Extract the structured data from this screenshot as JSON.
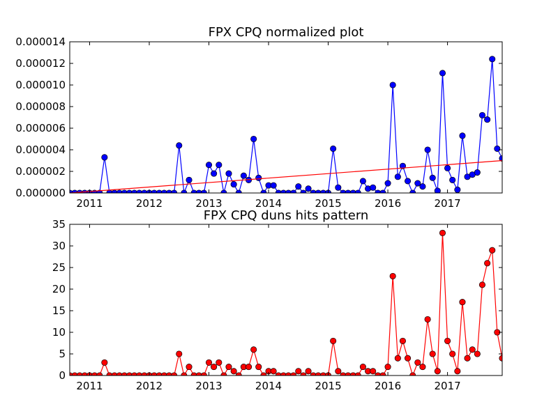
{
  "chart_data": [
    {
      "type": "line",
      "title": "FPX CPQ normalized plot",
      "xlabel": "",
      "ylabel": "",
      "xlim": [
        2010.667,
        2017.917
      ],
      "ylim": [
        0,
        1.4e-05
      ],
      "x_ticks": [
        {
          "value": 2011,
          "label": "2011"
        },
        {
          "value": 2012,
          "label": "2012"
        },
        {
          "value": 2013,
          "label": "2013"
        },
        {
          "value": 2014,
          "label": "2014"
        },
        {
          "value": 2015,
          "label": "2015"
        },
        {
          "value": 2016,
          "label": "2016"
        },
        {
          "value": 2017,
          "label": "2017"
        }
      ],
      "y_ticks": [
        {
          "value": 0,
          "label": "0.000000"
        },
        {
          "value": 2e-06,
          "label": "0.000002"
        },
        {
          "value": 4e-06,
          "label": "0.000004"
        },
        {
          "value": 6e-06,
          "label": "0.000006"
        },
        {
          "value": 8e-06,
          "label": "0.000008"
        },
        {
          "value": 1e-05,
          "label": "0.000010"
        },
        {
          "value": 1.2e-05,
          "label": "0.000012"
        },
        {
          "value": 1.4e-05,
          "label": "0.000014"
        }
      ],
      "grid": false,
      "series": [
        {
          "color": "#0000ff",
          "marker": "circle",
          "x": [
            2010.667,
            2010.75,
            2010.833,
            2010.917,
            2011.0,
            2011.083,
            2011.167,
            2011.25,
            2011.333,
            2011.417,
            2011.5,
            2011.583,
            2011.667,
            2011.75,
            2011.833,
            2011.917,
            2012.0,
            2012.083,
            2012.167,
            2012.25,
            2012.333,
            2012.417,
            2012.5,
            2012.583,
            2012.667,
            2012.75,
            2012.833,
            2012.917,
            2013.0,
            2013.083,
            2013.167,
            2013.25,
            2013.333,
            2013.417,
            2013.5,
            2013.583,
            2013.667,
            2013.75,
            2013.833,
            2013.917,
            2014.0,
            2014.083,
            2014.167,
            2014.25,
            2014.333,
            2014.417,
            2014.5,
            2014.583,
            2014.667,
            2014.75,
            2014.833,
            2014.917,
            2015.0,
            2015.083,
            2015.167,
            2015.25,
            2015.333,
            2015.417,
            2015.5,
            2015.583,
            2015.667,
            2015.75,
            2015.833,
            2015.917,
            2016.0,
            2016.083,
            2016.167,
            2016.25,
            2016.333,
            2016.417,
            2016.5,
            2016.583,
            2016.667,
            2016.75,
            2016.833,
            2016.917,
            2017.0,
            2017.083,
            2017.167,
            2017.25,
            2017.333,
            2017.417,
            2017.5,
            2017.583,
            2017.667,
            2017.75,
            2017.833,
            2017.917
          ],
          "y": [
            0,
            0,
            0,
            0,
            0,
            0,
            0,
            3.3e-06,
            0,
            0,
            0,
            0,
            0,
            0,
            0,
            0,
            0,
            0,
            0,
            0,
            0,
            0,
            4.4e-06,
            0,
            1.2e-06,
            0,
            0,
            0,
            2.6e-06,
            1.8e-06,
            2.6e-06,
            0,
            1.8e-06,
            8e-07,
            0,
            1.6e-06,
            1.2e-06,
            5e-06,
            1.4e-06,
            0,
            7e-07,
            7e-07,
            0,
            0,
            0,
            0,
            6e-07,
            0,
            4e-07,
            0,
            0,
            0,
            0,
            4.1e-06,
            5e-07,
            0,
            0,
            0,
            0,
            1.1e-06,
            4e-07,
            5e-07,
            0,
            0,
            9e-07,
            1e-05,
            1.5e-06,
            2.5e-06,
            1.1e-06,
            0,
            9e-07,
            6e-07,
            4e-06,
            1.4e-06,
            2e-07,
            1.11e-05,
            2.3e-06,
            1.2e-06,
            3e-07,
            5.3e-06,
            1.5e-06,
            1.7e-06,
            1.9e-06,
            7.2e-06,
            6.8e-06,
            1.24e-05,
            4.1e-06,
            3.2e-06
          ]
        },
        {
          "color": "#ff0000",
          "marker": "none",
          "trend": true,
          "x": [
            2010.667,
            2017.917
          ],
          "y": [
            0,
            3e-06
          ]
        }
      ]
    },
    {
      "type": "line",
      "title": "FPX CPQ duns hits pattern",
      "xlabel": "",
      "ylabel": "",
      "xlim": [
        2010.667,
        2017.917
      ],
      "ylim": [
        0,
        35
      ],
      "x_ticks": [
        {
          "value": 2011,
          "label": "2011"
        },
        {
          "value": 2012,
          "label": "2012"
        },
        {
          "value": 2013,
          "label": "2013"
        },
        {
          "value": 2014,
          "label": "2014"
        },
        {
          "value": 2015,
          "label": "2015"
        },
        {
          "value": 2016,
          "label": "2016"
        },
        {
          "value": 2017,
          "label": "2017"
        }
      ],
      "y_ticks": [
        {
          "value": 0,
          "label": "0"
        },
        {
          "value": 5,
          "label": "5"
        },
        {
          "value": 10,
          "label": "10"
        },
        {
          "value": 15,
          "label": "15"
        },
        {
          "value": 20,
          "label": "20"
        },
        {
          "value": 25,
          "label": "25"
        },
        {
          "value": 30,
          "label": "30"
        },
        {
          "value": 35,
          "label": "35"
        }
      ],
      "grid": false,
      "series": [
        {
          "color": "#ff0000",
          "marker": "circle",
          "x": [
            2010.667,
            2010.75,
            2010.833,
            2010.917,
            2011.0,
            2011.083,
            2011.167,
            2011.25,
            2011.333,
            2011.417,
            2011.5,
            2011.583,
            2011.667,
            2011.75,
            2011.833,
            2011.917,
            2012.0,
            2012.083,
            2012.167,
            2012.25,
            2012.333,
            2012.417,
            2012.5,
            2012.583,
            2012.667,
            2012.75,
            2012.833,
            2012.917,
            2013.0,
            2013.083,
            2013.167,
            2013.25,
            2013.333,
            2013.417,
            2013.5,
            2013.583,
            2013.667,
            2013.75,
            2013.833,
            2013.917,
            2014.0,
            2014.083,
            2014.167,
            2014.25,
            2014.333,
            2014.417,
            2014.5,
            2014.583,
            2014.667,
            2014.75,
            2014.833,
            2014.917,
            2015.0,
            2015.083,
            2015.167,
            2015.25,
            2015.333,
            2015.417,
            2015.5,
            2015.583,
            2015.667,
            2015.75,
            2015.833,
            2015.917,
            2016.0,
            2016.083,
            2016.167,
            2016.25,
            2016.333,
            2016.417,
            2016.5,
            2016.583,
            2016.667,
            2016.75,
            2016.833,
            2016.917,
            2017.0,
            2017.083,
            2017.167,
            2017.25,
            2017.333,
            2017.417,
            2017.5,
            2017.583,
            2017.667,
            2017.75,
            2017.833,
            2017.917
          ],
          "y": [
            0,
            0,
            0,
            0,
            0,
            0,
            0,
            3,
            0,
            0,
            0,
            0,
            0,
            0,
            0,
            0,
            0,
            0,
            0,
            0,
            0,
            0,
            5,
            0,
            2,
            0,
            0,
            0,
            3,
            2,
            3,
            0,
            2,
            1,
            0,
            2,
            2,
            6,
            2,
            0,
            1,
            1,
            0,
            0,
            0,
            0,
            1,
            0,
            1,
            0,
            0,
            0,
            0,
            8,
            1,
            0,
            0,
            0,
            0,
            2,
            1,
            1,
            0,
            0,
            2,
            23,
            4,
            8,
            4,
            0,
            3,
            2,
            13,
            5,
            1,
            33,
            8,
            5,
            1,
            17,
            4,
            6,
            5,
            21,
            26,
            29,
            10,
            4
          ]
        }
      ]
    }
  ]
}
